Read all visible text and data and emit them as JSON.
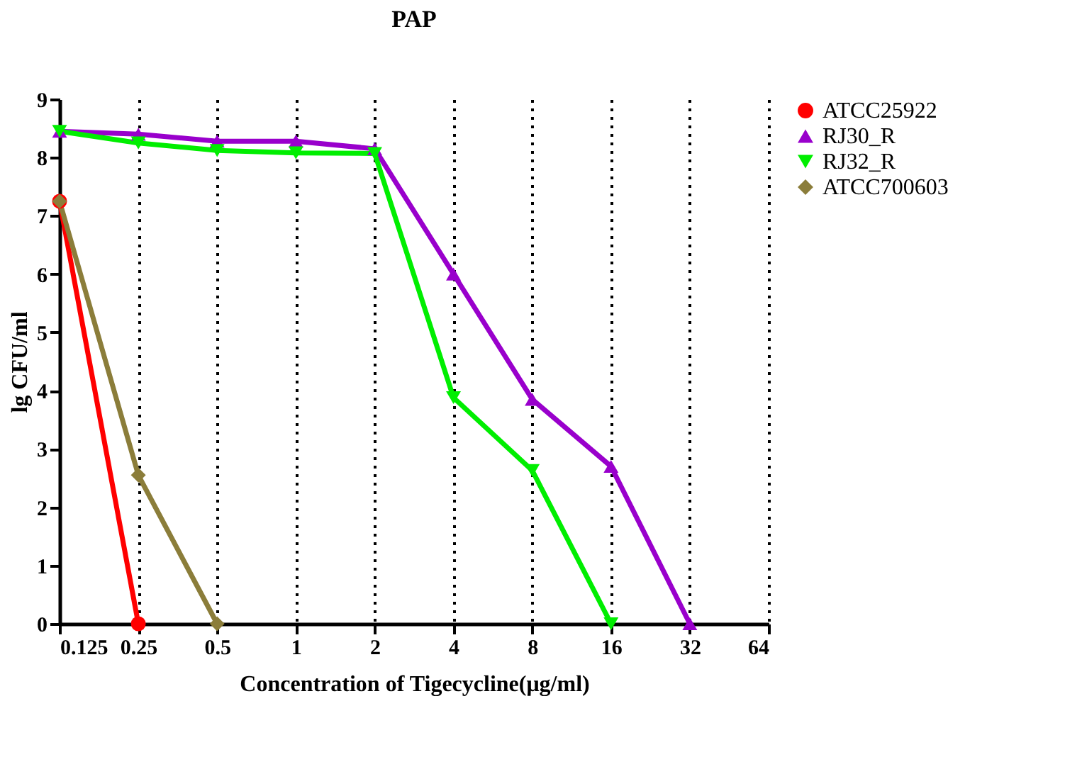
{
  "chart_data": {
    "type": "line",
    "title": "PAP",
    "xlabel": "Concentration of Tigecycline(μg/ml)",
    "ylabel": "lg CFU/ml",
    "categories": [
      "0.125",
      "0.25",
      "0.5",
      "1",
      "2",
      "4",
      "8",
      "16",
      "32",
      "64"
    ],
    "series": [
      {
        "name": "ATCC25922",
        "color": "#ff0000",
        "marker": "circle",
        "values": [
          7.25,
          0,
          null,
          null,
          null,
          null,
          null,
          null,
          null,
          null
        ]
      },
      {
        "name": "RJ30_R",
        "color": "#9900cc",
        "marker": "triangle",
        "values": [
          8.45,
          8.4,
          8.28,
          8.28,
          8.15,
          6.0,
          3.85,
          2.7,
          0,
          null
        ]
      },
      {
        "name": "RJ32_R",
        "color": "#00ee00",
        "marker": "triangle-down",
        "values": [
          8.45,
          8.25,
          8.12,
          8.08,
          8.07,
          3.88,
          2.63,
          0,
          null,
          null
        ]
      },
      {
        "name": "ATCC700603",
        "color": "#8b7d3a",
        "marker": "diamond",
        "values": [
          7.25,
          2.55,
          0,
          null,
          null,
          null,
          null,
          null,
          null,
          null
        ]
      }
    ],
    "ylim": [
      0,
      9
    ],
    "yticks": [
      0,
      1,
      2,
      3,
      4,
      5,
      6,
      7,
      8,
      9
    ],
    "grid": "x",
    "legend": "right",
    "line_style": "solid"
  }
}
